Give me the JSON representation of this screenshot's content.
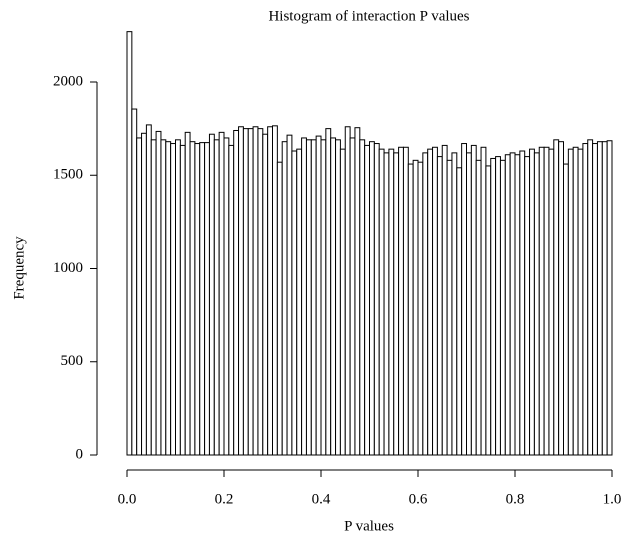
{
  "chart_data": {
    "type": "histogram",
    "title": "Histogram of interaction P values",
    "x_label": "P values",
    "y_label": "Frequency",
    "bins": [
      0,
      0.01,
      0.02,
      0.03,
      0.04,
      0.05,
      0.06,
      0.07,
      0.08,
      0.09,
      0.1,
      0.11,
      0.12,
      0.13,
      0.14,
      0.15,
      0.16,
      0.17,
      0.18,
      0.19,
      0.2,
      0.21,
      0.22,
      0.23,
      0.24,
      0.25,
      0.26,
      0.27,
      0.28,
      0.29,
      0.3,
      0.31,
      0.32,
      0.33,
      0.34,
      0.35,
      0.36,
      0.37,
      0.38,
      0.39,
      0.4,
      0.41,
      0.42,
      0.43,
      0.44,
      0.45,
      0.46,
      0.47,
      0.48,
      0.49,
      0.5,
      0.51,
      0.52,
      0.53,
      0.54,
      0.55,
      0.56,
      0.57,
      0.58,
      0.59,
      0.6,
      0.61,
      0.62,
      0.63,
      0.64,
      0.65,
      0.66,
      0.67,
      0.68,
      0.69,
      0.7,
      0.71,
      0.72,
      0.73,
      0.74,
      0.75,
      0.76,
      0.77,
      0.78,
      0.79,
      0.8,
      0.81,
      0.82,
      0.83,
      0.84,
      0.85,
      0.86,
      0.87,
      0.88,
      0.89,
      0.9,
      0.91,
      0.92,
      0.93,
      0.94,
      0.95,
      0.96,
      0.97,
      0.98,
      0.99,
      1
    ],
    "values": [
      2270,
      1855,
      1700,
      1725,
      1770,
      1690,
      1735,
      1690,
      1680,
      1670,
      1690,
      1660,
      1730,
      1680,
      1670,
      1675,
      1675,
      1720,
      1690,
      1730,
      1700,
      1660,
      1740,
      1760,
      1750,
      1750,
      1760,
      1750,
      1720,
      1760,
      1765,
      1570,
      1680,
      1715,
      1630,
      1640,
      1700,
      1690,
      1690,
      1710,
      1690,
      1750,
      1700,
      1690,
      1640,
      1760,
      1700,
      1755,
      1690,
      1660,
      1680,
      1670,
      1640,
      1620,
      1640,
      1620,
      1650,
      1650,
      1560,
      1580,
      1570,
      1620,
      1640,
      1650,
      1600,
      1660,
      1580,
      1620,
      1540,
      1670,
      1620,
      1660,
      1580,
      1650,
      1550,
      1590,
      1600,
      1580,
      1610,
      1620,
      1610,
      1630,
      1600,
      1640,
      1620,
      1650,
      1650,
      1640,
      1690,
      1680,
      1560,
      1640,
      1650,
      1640,
      1670,
      1690,
      1670,
      1680,
      1680,
      1685
    ],
    "color": "#ffffff",
    "edge_color": "#000000",
    "xlim": [
      0,
      1
    ],
    "xticks": [
      {
        "value": 0,
        "label": "0.0"
      },
      0.2,
      0.4,
      0.6,
      0.8,
      {
        "value": 1,
        "label": "1.0"
      }
    ],
    "ylim": [
      0,
      2300
    ],
    "yticks": [
      0,
      500,
      1000,
      1500,
      2000
    ]
  }
}
